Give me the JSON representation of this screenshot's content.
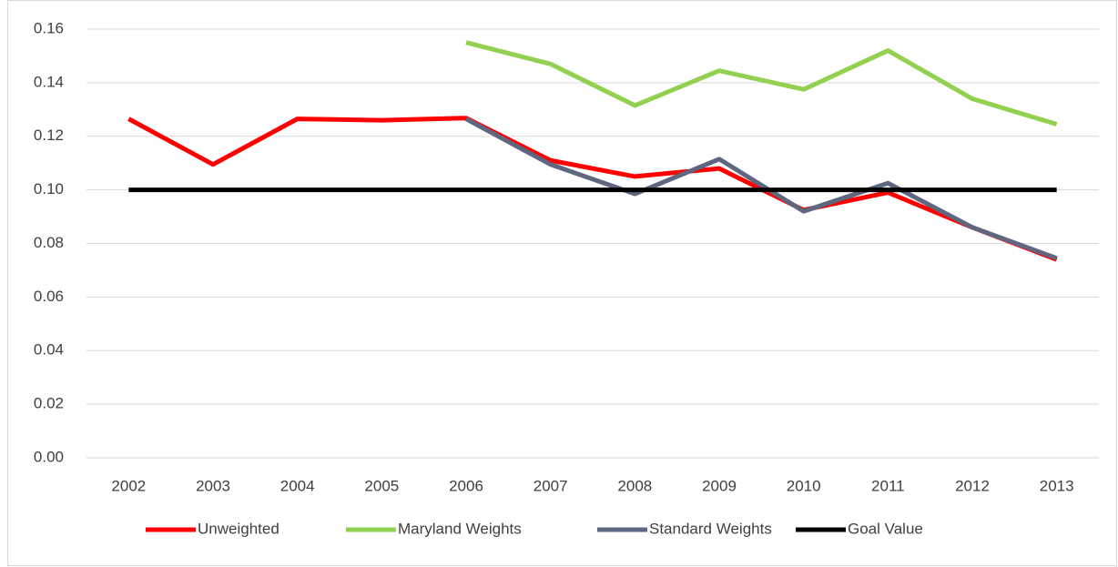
{
  "chart_data": {
    "type": "line",
    "categories": [
      "2002",
      "2003",
      "2004",
      "2005",
      "2006",
      "2007",
      "2008",
      "2009",
      "2010",
      "2011",
      "2012",
      "2013"
    ],
    "series": [
      {
        "name": "Unweighted",
        "color": "#ff0000",
        "values": [
          0.1265,
          0.1095,
          0.1265,
          0.126,
          0.1268,
          0.111,
          0.105,
          0.108,
          0.0925,
          0.099,
          0.086,
          0.074
        ]
      },
      {
        "name": "Maryland Weights",
        "color": "#92d050",
        "values": [
          null,
          null,
          null,
          null,
          0.155,
          0.147,
          0.1315,
          0.1445,
          0.1375,
          0.152,
          0.134,
          0.1245
        ]
      },
      {
        "name": "Standard Weights",
        "color": "#5f6780",
        "values": [
          null,
          null,
          null,
          null,
          0.1265,
          0.1095,
          0.0985,
          0.1115,
          0.092,
          0.1025,
          0.086,
          0.0745
        ]
      },
      {
        "name": "Goal Value",
        "color": "#000000",
        "values": [
          0.1,
          0.1,
          0.1,
          0.1,
          0.1,
          0.1,
          0.1,
          0.1,
          0.1,
          0.1,
          0.1,
          0.1
        ]
      }
    ],
    "ylim": [
      0,
      0.16
    ],
    "yticks": [
      {
        "value": 0,
        "label": "0.00"
      },
      {
        "value": 0.02,
        "label": "0.02"
      },
      {
        "value": 0.04,
        "label": "0.04"
      },
      {
        "value": 0.06,
        "label": "0.06"
      },
      {
        "value": 0.08,
        "label": "0.08"
      },
      {
        "value": 0.1,
        "label": "0.10"
      },
      {
        "value": 0.12,
        "label": "0.12"
      },
      {
        "value": 0.14,
        "label": "0.14"
      },
      {
        "value": 0.16,
        "label": "0.16"
      }
    ],
    "grid": true,
    "legend": "bottom"
  }
}
